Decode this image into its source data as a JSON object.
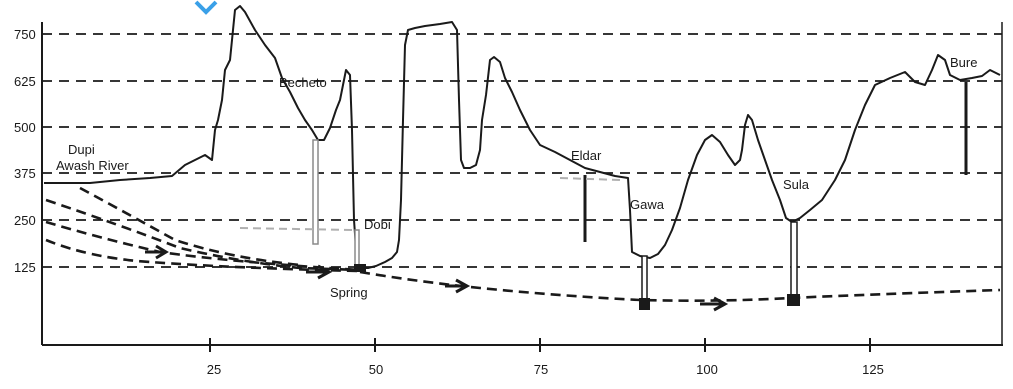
{
  "diagram": {
    "y_ticks": [
      "750",
      "625",
      "500",
      "375",
      "250",
      "125"
    ],
    "x_ticks": [
      "25",
      "50",
      "75",
      "100",
      "125"
    ],
    "labels": {
      "dupi": "Dupi",
      "awash_river": "Awash River",
      "becheto": "Becheto",
      "dobi": "Dobi",
      "spring": "Spring",
      "eldar": "Eldar",
      "gawa": "Gawa",
      "sula": "Sula",
      "bure": "Bure"
    },
    "colors": {
      "line": "#1a1a1a",
      "grid": "#1a1a1a",
      "accent": "#3aa0e8",
      "well": "#8a8a8a"
    }
  }
}
